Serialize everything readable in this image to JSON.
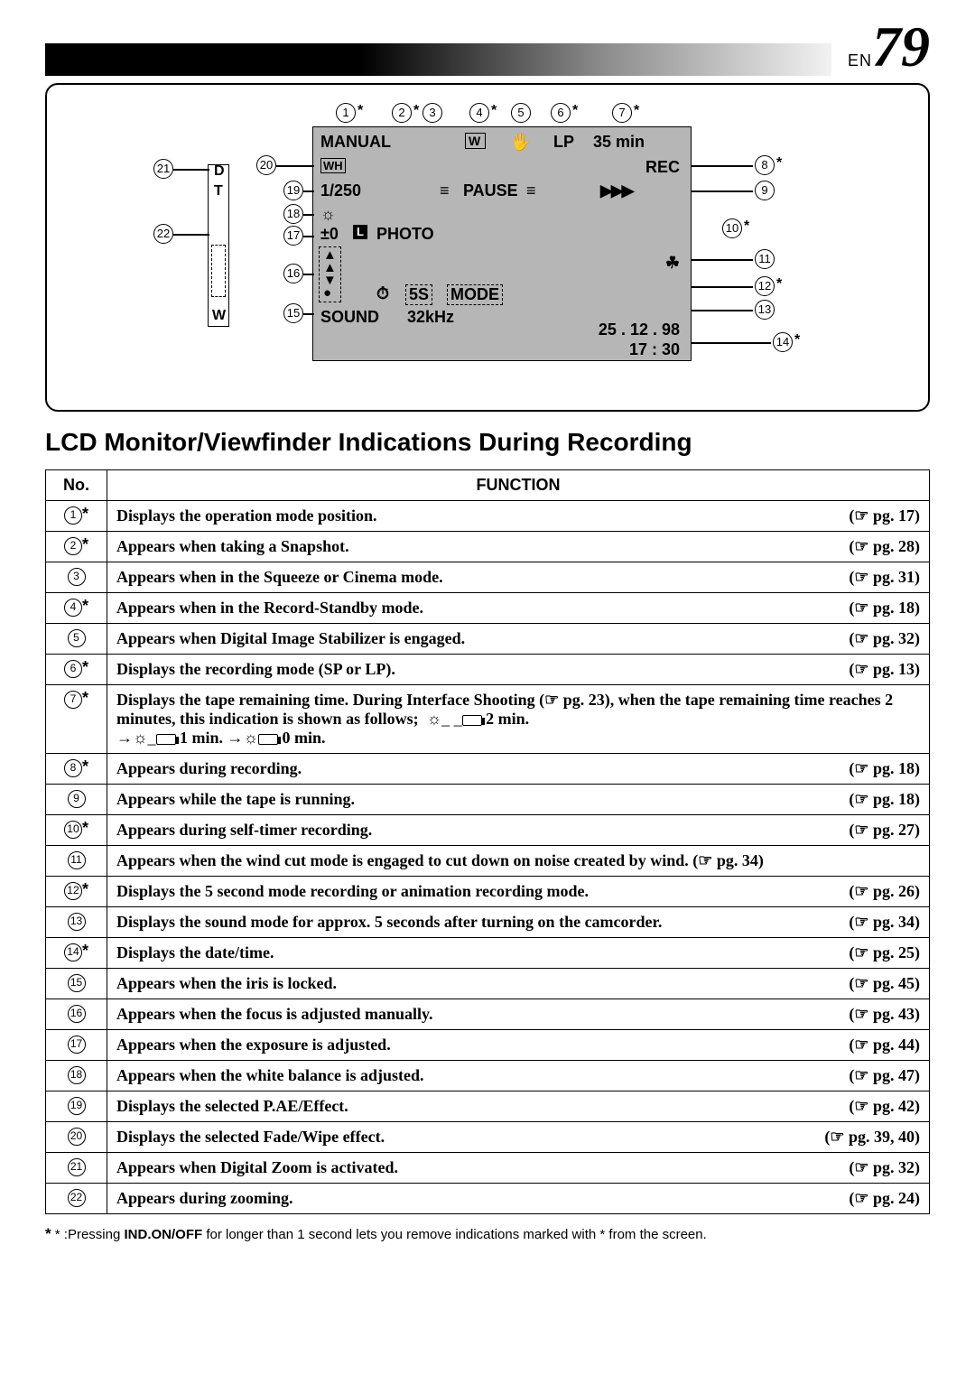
{
  "header": {
    "lang": "EN",
    "page_number": "79"
  },
  "diagram": {
    "labels": {
      "manual": "MANUAL",
      "lp": "LP",
      "mins": "35 min",
      "rec": "REC",
      "shutter": "1/250",
      "pause": "PAUSE",
      "exposure": "±0",
      "photo": "PHOTO",
      "fivesmode": "5S",
      "mode": "MODE",
      "sound": "SOUND",
      "khz": "32kHz",
      "date": "25 . 12 . 98",
      "time": "17 : 30",
      "D": "D",
      "T": "T",
      "W": "W",
      "WH": "WH"
    }
  },
  "title": "LCD Monitor/Viewfinder Indications During Recording",
  "table_headers": {
    "no": "No.",
    "func": "FUNCTION"
  },
  "rows": [
    {
      "n": "1",
      "star": true,
      "text": "Displays the operation mode position.",
      "pg": "17"
    },
    {
      "n": "2",
      "star": true,
      "text": "Appears when taking a Snapshot.",
      "pg": "28"
    },
    {
      "n": "3",
      "star": false,
      "text": "Appears when in the Squeeze or Cinema mode.",
      "pg": "31"
    },
    {
      "n": "4",
      "star": true,
      "text": "Appears when in the Record-Standby mode.",
      "pg": "18"
    },
    {
      "n": "5",
      "star": false,
      "text": "Appears when Digital Image Stabilizer is engaged.",
      "pg": "32"
    },
    {
      "n": "6",
      "star": true,
      "text": "Displays the recording mode (SP or LP).",
      "pg": "13"
    },
    {
      "n": "7",
      "star": true,
      "text": "Displays the tape remaining time. During Interface Shooting (☞ pg. 23), when the tape remaining time reaches 2 minutes, this indication is shown as follows;",
      "pg": "",
      "extra_tape": true
    },
    {
      "n": "8",
      "star": true,
      "text": "Appears during recording.",
      "pg": "18"
    },
    {
      "n": "9",
      "star": false,
      "text": "Appears while the tape is running.",
      "pg": "18"
    },
    {
      "n": "10",
      "star": true,
      "text": "Appears during self-timer recording.",
      "pg": "27"
    },
    {
      "n": "11",
      "star": false,
      "text": "Appears when the wind cut mode is engaged to cut down on noise created by wind.",
      "pg": "34",
      "inline_pg": true
    },
    {
      "n": "12",
      "star": true,
      "text": "Displays the 5 second mode recording or animation recording mode.",
      "pg": "26"
    },
    {
      "n": "13",
      "star": false,
      "text": "Displays the sound mode for approx. 5 seconds after turning on the camcorder.",
      "pg": "34"
    },
    {
      "n": "14",
      "star": true,
      "text": "Displays the date/time.",
      "pg": "25"
    },
    {
      "n": "15",
      "star": false,
      "text": "Appears when the iris is locked.",
      "pg": "45"
    },
    {
      "n": "16",
      "star": false,
      "text": "Appears when the focus is adjusted manually.",
      "pg": "43"
    },
    {
      "n": "17",
      "star": false,
      "text": "Appears when the exposure is adjusted.",
      "pg": "44"
    },
    {
      "n": "18",
      "star": false,
      "text": "Appears when the white balance is adjusted.",
      "pg": "47"
    },
    {
      "n": "19",
      "star": false,
      "text": "Displays the selected P.AE/Effect.",
      "pg": "42"
    },
    {
      "n": "20",
      "star": false,
      "text": "Displays the selected Fade/Wipe effect.",
      "pg": "39, 40"
    },
    {
      "n": "21",
      "star": false,
      "text": "Appears when Digital Zoom is activated.",
      "pg": "32"
    },
    {
      "n": "22",
      "star": false,
      "text": "Appears during zooming.",
      "pg": "24"
    }
  ],
  "tape_extra": {
    "t2": "2 min.",
    "t1": "1 min.",
    "t0": "0 min."
  },
  "footnote": {
    "prefix": "* :Pressing ",
    "btn": "IND.ON/OFF",
    "suffix": " for longer than 1 second  lets you remove indications marked with * from the screen."
  }
}
